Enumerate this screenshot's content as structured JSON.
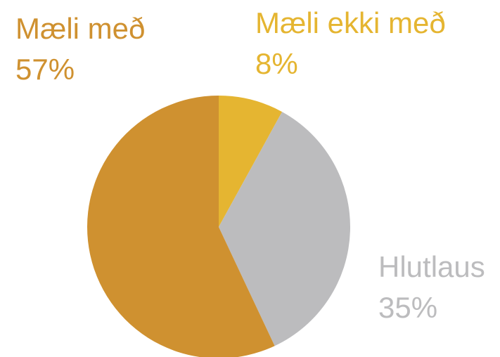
{
  "chart_data": {
    "type": "pie",
    "categories": [
      "Mæli ekki með",
      "Hlutlaus",
      "Mæli með"
    ],
    "values": [
      8,
      35,
      57
    ],
    "value_labels": [
      "8%",
      "35%",
      "57%"
    ],
    "colors": [
      "#e5b531",
      "#bcbcbe",
      "#cf9130"
    ]
  }
}
